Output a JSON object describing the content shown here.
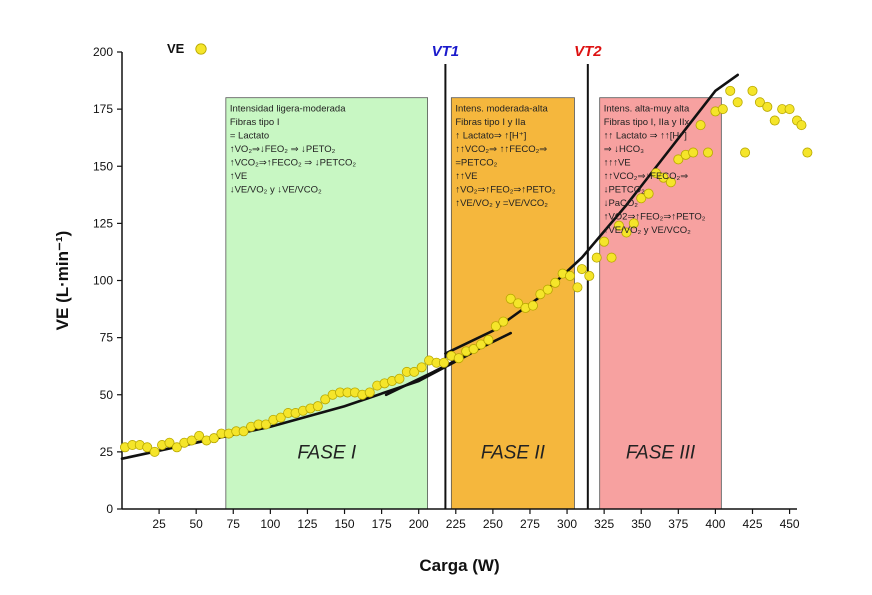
{
  "chart_data": {
    "type": "scatter",
    "xlabel": "Carga (W)",
    "ylabel": "VE (L·min⁻¹)",
    "xlim": [
      0,
      455
    ],
    "ylim": [
      0,
      200
    ],
    "x_ticks": [
      25,
      50,
      75,
      100,
      125,
      150,
      175,
      200,
      225,
      250,
      275,
      300,
      325,
      350,
      375,
      400,
      425,
      450
    ],
    "y_ticks": [
      0,
      25,
      50,
      75,
      100,
      125,
      150,
      175,
      200
    ],
    "legend": {
      "label": "VE",
      "position": "top-left"
    },
    "colors": {
      "marker": "#f5e52a",
      "marker_edge": "#b8a800",
      "vt1": "#1a1acc",
      "vt2": "#dd1111",
      "fase1": "#c8f7c3",
      "fase2": "#f5b73d",
      "fase3": "#f7a1a0"
    },
    "series": [
      {
        "name": "VE",
        "points": [
          [
            2,
            27
          ],
          [
            7,
            28
          ],
          [
            12,
            28
          ],
          [
            17,
            27
          ],
          [
            22,
            25
          ],
          [
            27,
            28
          ],
          [
            32,
            29
          ],
          [
            37,
            27
          ],
          [
            42,
            29
          ],
          [
            47,
            30
          ],
          [
            52,
            32
          ],
          [
            57,
            30
          ],
          [
            62,
            31
          ],
          [
            67,
            33
          ],
          [
            72,
            33
          ],
          [
            77,
            34
          ],
          [
            82,
            34
          ],
          [
            87,
            36
          ],
          [
            92,
            37
          ],
          [
            97,
            37
          ],
          [
            102,
            39
          ],
          [
            107,
            40
          ],
          [
            112,
            42
          ],
          [
            117,
            42
          ],
          [
            122,
            43
          ],
          [
            127,
            44
          ],
          [
            132,
            45
          ],
          [
            137,
            48
          ],
          [
            142,
            50
          ],
          [
            147,
            51
          ],
          [
            152,
            51
          ],
          [
            157,
            51
          ],
          [
            162,
            50
          ],
          [
            167,
            51
          ],
          [
            172,
            54
          ],
          [
            177,
            55
          ],
          [
            182,
            56
          ],
          [
            187,
            57
          ],
          [
            192,
            60
          ],
          [
            197,
            60
          ],
          [
            202,
            62
          ],
          [
            207,
            65
          ],
          [
            212,
            64
          ],
          [
            217,
            64
          ],
          [
            222,
            67
          ],
          [
            227,
            66
          ],
          [
            232,
            69
          ],
          [
            237,
            70
          ],
          [
            242,
            72
          ],
          [
            247,
            74
          ],
          [
            252,
            80
          ],
          [
            257,
            82
          ],
          [
            262,
            92
          ],
          [
            267,
            90
          ],
          [
            272,
            88
          ],
          [
            277,
            89
          ],
          [
            282,
            94
          ],
          [
            287,
            96
          ],
          [
            292,
            99
          ],
          [
            297,
            103
          ],
          [
            302,
            102
          ],
          [
            307,
            97
          ],
          [
            310,
            105
          ],
          [
            315,
            102
          ],
          [
            320,
            110
          ],
          [
            325,
            117
          ],
          [
            330,
            110
          ],
          [
            335,
            124
          ],
          [
            340,
            121
          ],
          [
            345,
            125
          ],
          [
            350,
            136
          ],
          [
            355,
            138
          ],
          [
            360,
            147
          ],
          [
            365,
            145
          ],
          [
            370,
            143
          ],
          [
            375,
            153
          ],
          [
            380,
            155
          ],
          [
            385,
            156
          ],
          [
            390,
            168
          ],
          [
            395,
            156
          ],
          [
            400,
            174
          ],
          [
            405,
            175
          ],
          [
            410,
            183
          ],
          [
            415,
            178
          ],
          [
            420,
            156
          ],
          [
            425,
            183
          ],
          [
            430,
            178
          ],
          [
            435,
            176
          ],
          [
            440,
            170
          ],
          [
            445,
            175
          ],
          [
            450,
            175
          ],
          [
            455,
            170
          ],
          [
            458,
            168
          ],
          [
            462,
            156
          ]
        ]
      }
    ],
    "trend_lines": [
      {
        "name": "fit1",
        "points": [
          [
            0,
            22
          ],
          [
            50,
            29
          ],
          [
            100,
            36
          ],
          [
            150,
            45
          ],
          [
            200,
            56
          ],
          [
            235,
            68
          ]
        ]
      },
      {
        "name": "fit2",
        "points": [
          [
            178,
            50
          ],
          [
            210,
            60
          ],
          [
            240,
            70
          ],
          [
            262,
            77
          ]
        ]
      },
      {
        "name": "fit3",
        "points": [
          [
            218,
            68
          ],
          [
            250,
            78
          ],
          [
            280,
            92
          ],
          [
            310,
            110
          ],
          [
            340,
            133
          ],
          [
            370,
            158
          ],
          [
            400,
            183
          ],
          [
            415,
            190
          ]
        ]
      }
    ],
    "thresholds": [
      {
        "label": "VT1",
        "x": 218
      },
      {
        "label": "VT2",
        "x": 314
      }
    ],
    "phases": [
      {
        "title": "FASE I",
        "x_range": [
          70,
          206
        ],
        "y_top": 180,
        "lines": [
          "Intensidad ligera-moderada",
          "Fibras tipo I",
          "= Lactato",
          "↑VO₂⇒↓FEO₂ ⇒ ↓PETO₂",
          "↑VCO₂⇒↑FECO₂ ⇒ ↓PETCO₂",
          "↑VE",
          "↓VE/VO₂ y ↓VE/VCO₂"
        ]
      },
      {
        "title": "FASE II",
        "x_range": [
          222,
          305
        ],
        "y_top": 180,
        "lines": [
          "Intens. moderada-alta",
          "Fibras tipo I y IIa",
          "↑ Lactato⇒ ↑[H⁺]",
          "↑↑VCO₂⇒ ↑↑FECO₂⇒",
          "=PETCO₂",
          "↑↑VE",
          "↑VO₂⇒↑FEO₂⇒↑PETO₂",
          "↑VE/VO₂ y =VE/VCO₂"
        ]
      },
      {
        "title": "FASE III",
        "x_range": [
          322,
          404
        ],
        "y_top": 180,
        "lines": [
          "Intens. alta-muy alta",
          "Fibras tipo I, IIa y IIx",
          "↑↑ Lactato ⇒ ↑↑[H⁺]",
          "⇒ ↓HCO₃",
          "↑↑↑VE",
          "↑↑VCO₂⇒↓FECO₂⇒",
          "↓PETCO₂",
          "↓PaCO₂",
          "↑VO2⇒↑FEO₂⇒↑PETO₂",
          "↑VE/VO₂ y VE/VCO₂"
        ]
      }
    ]
  }
}
